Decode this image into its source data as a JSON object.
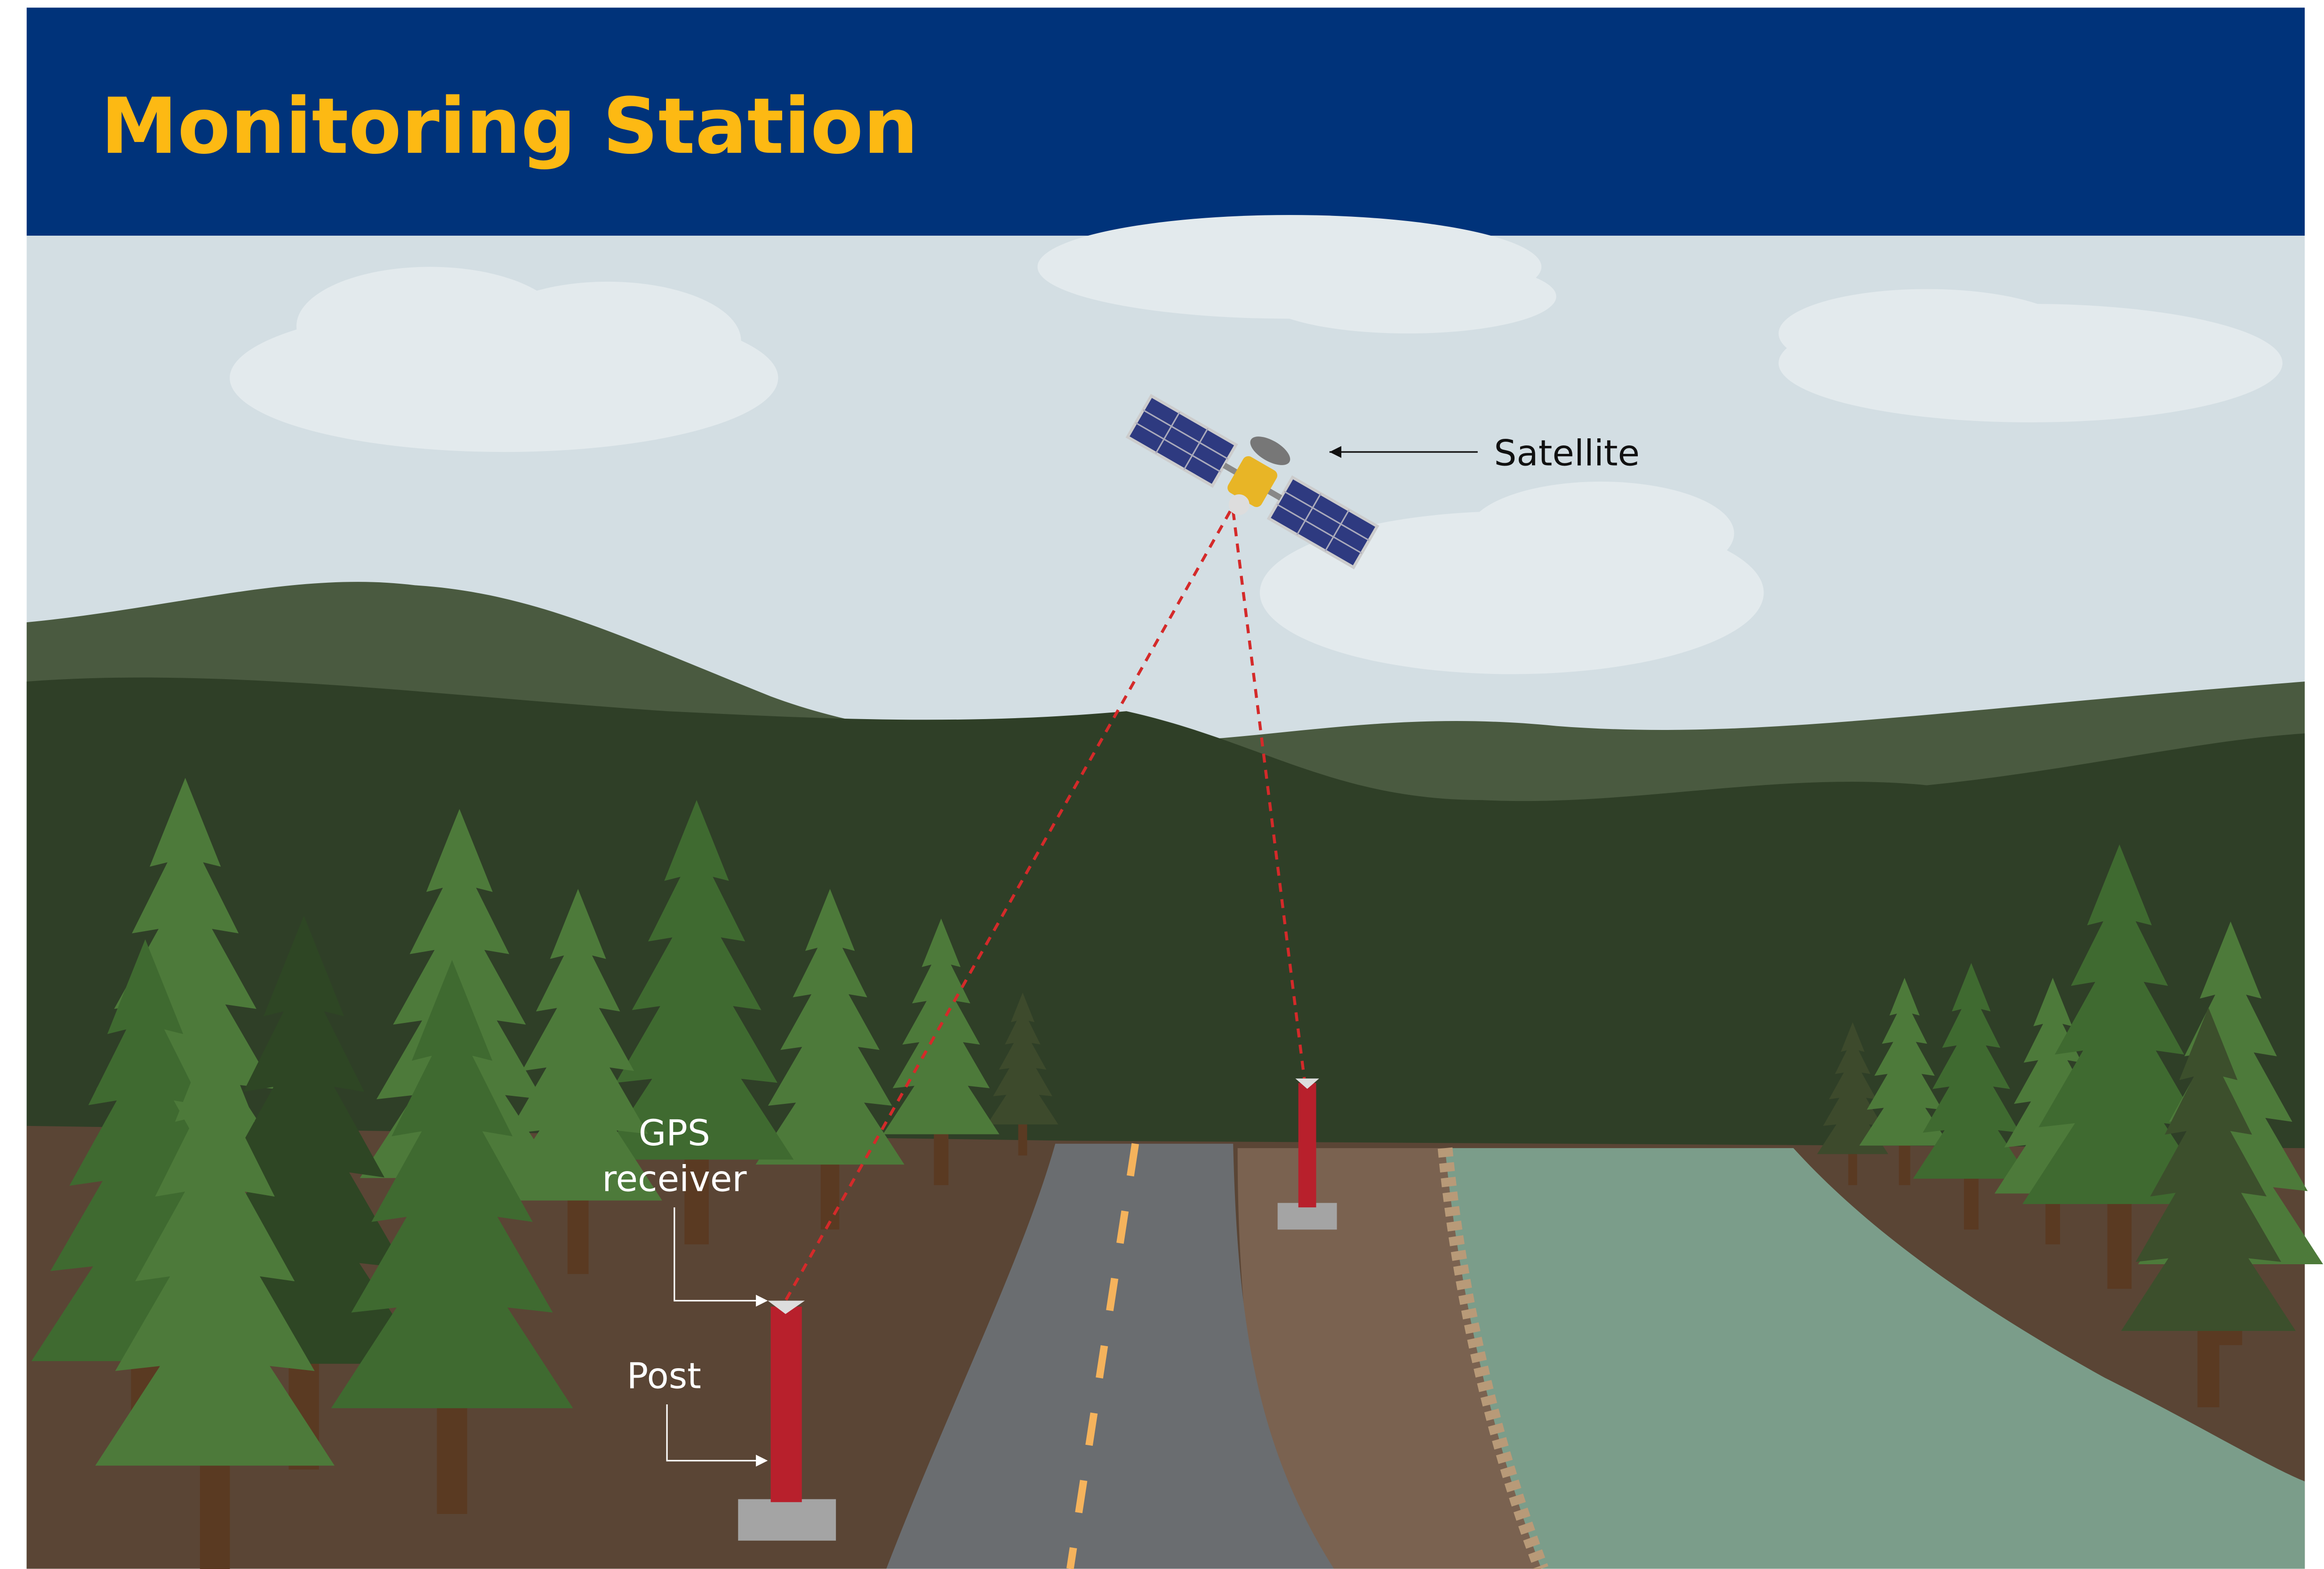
{
  "header": {
    "title": "Monitoring Station"
  },
  "labels": {
    "satellite": "Satellite",
    "gps_receiver": [
      "GPS",
      "receiver"
    ],
    "post": "Post"
  }
}
